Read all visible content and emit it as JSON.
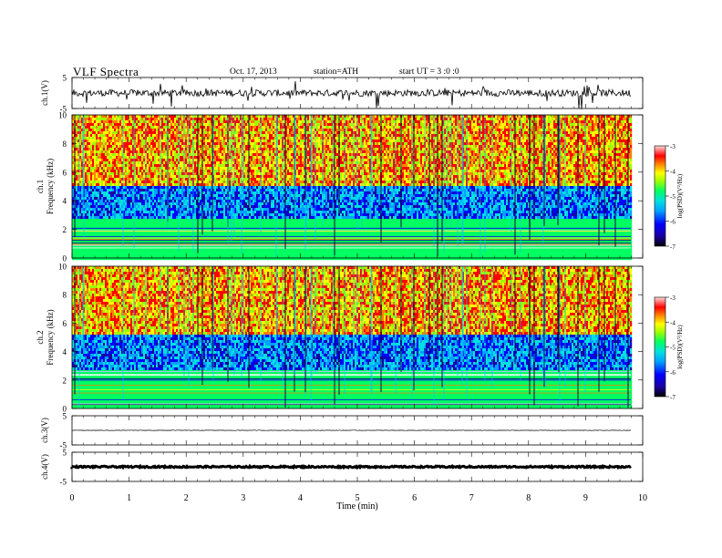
{
  "header": {
    "title": "VLF  Spectra",
    "date": "Oct. 17, 2013",
    "station": "station=ATH",
    "start": "start  UT  =   3  :0  :0"
  },
  "chart_data": {
    "type": "heatmap",
    "x_axis": {
      "label": "Time  (min)",
      "range": [
        0,
        10
      ],
      "ticks": [
        "0",
        "1",
        "2",
        "3",
        "4",
        "5",
        "6",
        "7",
        "8",
        "9",
        "10"
      ],
      "data_end": 9.8
    },
    "panels": [
      {
        "kind": "waveform",
        "ylabel": "ch.1(V)",
        "ylim": [
          -5,
          5
        ],
        "tick_labels": [
          "5",
          "-5"
        ],
        "baseline": 0,
        "noise": "high"
      },
      {
        "kind": "spectrogram",
        "ylabel": "ch.1\nFrequency  (kHz)",
        "ylabel_top": "ch.1",
        "ylabel_bottom": "Frequency  (kHz)",
        "ylim": [
          0,
          10
        ],
        "tick_labels": [
          "0",
          "2",
          "4",
          "6",
          "8",
          "10"
        ],
        "colorbar": {
          "label": "log(PSD)(V²/Hz)",
          "range": [
            -7,
            -3
          ],
          "tick_labels": [
            "-3",
            "-4",
            "-5",
            "-6",
            "-7"
          ]
        }
      },
      {
        "kind": "spectrogram",
        "ylabel": "ch.2\nFrequency  (kHz)",
        "ylabel_top": "ch.2",
        "ylabel_bottom": "Frequency  (kHz)",
        "ylim": [
          0,
          10
        ],
        "tick_labels": [
          "0",
          "2",
          "4",
          "6",
          "8",
          "10"
        ],
        "colorbar": {
          "label": "log(PSD)(V²/Hz)",
          "range": [
            -7,
            -3
          ],
          "tick_labels": [
            "-3",
            "-4",
            "-5",
            "-6",
            "-7"
          ]
        }
      },
      {
        "kind": "waveform",
        "ylabel": "ch.3(V)",
        "ylim": [
          -5,
          5
        ],
        "tick_labels": [
          "5",
          "-5"
        ],
        "baseline": 0,
        "noise": "low"
      },
      {
        "kind": "waveform",
        "ylabel": "ch.4(V)",
        "ylim": [
          -5,
          5
        ],
        "tick_labels": [
          "5",
          "-5"
        ],
        "baseline": 0,
        "noise": "thick"
      }
    ],
    "colormap": [
      "#000000",
      "#1a00a0",
      "#0000ff",
      "#00a0ff",
      "#00e0e0",
      "#00ff60",
      "#a0ff00",
      "#ffff00",
      "#ff8000",
      "#ff0000",
      "#ffd0d0"
    ]
  }
}
